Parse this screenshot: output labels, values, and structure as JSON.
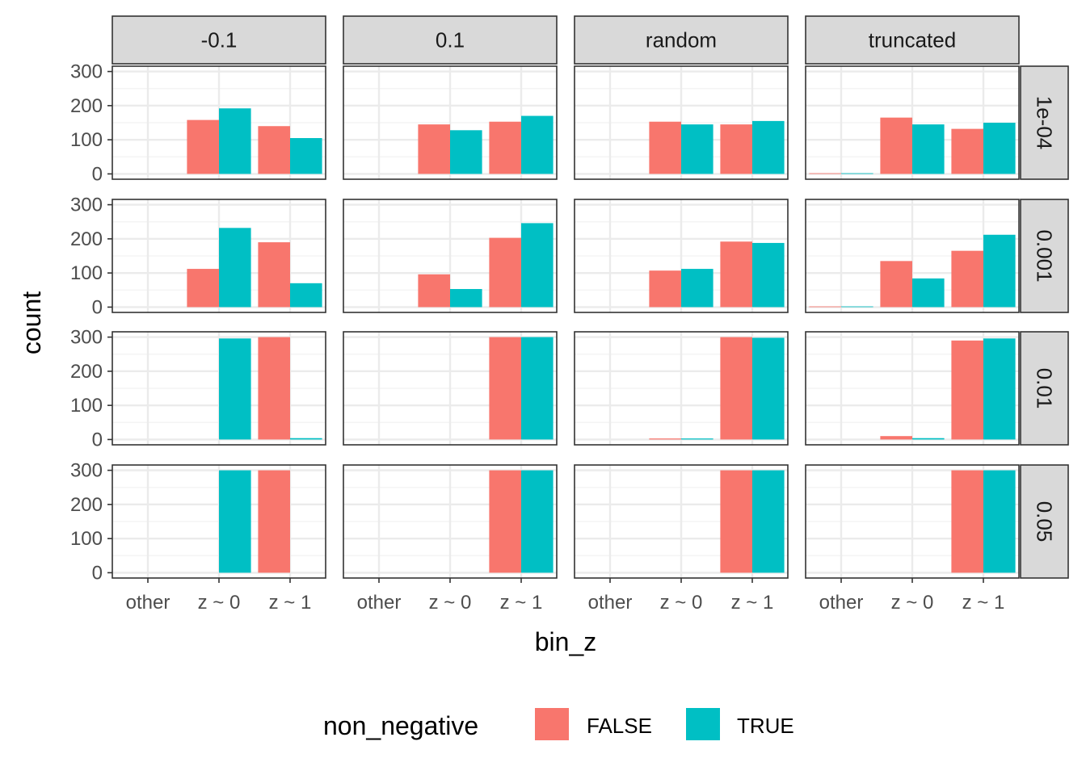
{
  "chart_data": {
    "type": "bar",
    "xlabel": "bin_z",
    "ylabel": "count",
    "ylim": [
      0,
      300
    ],
    "yticks": [
      "0",
      "100",
      "200",
      "300"
    ],
    "categories": [
      "other",
      "z ~ 0",
      "z ~ 1"
    ],
    "columns": [
      "-0.1",
      "0.1",
      "random",
      "truncated"
    ],
    "rows": [
      "1e-04",
      "0.001",
      "0.01",
      "0.05"
    ],
    "legend": {
      "title": "non_negative",
      "position": "bottom",
      "entries": [
        {
          "label": "FALSE",
          "color": "#F8766D"
        },
        {
          "label": "TRUE",
          "color": "#00BFC4"
        }
      ]
    },
    "grid": true,
    "panels": [
      {
        "row": "1e-04",
        "col": "-0.1",
        "FALSE": [
          0,
          158,
          140
        ],
        "TRUE": [
          0,
          192,
          105
        ]
      },
      {
        "row": "1e-04",
        "col": "0.1",
        "FALSE": [
          0,
          145,
          153
        ],
        "TRUE": [
          0,
          128,
          170
        ]
      },
      {
        "row": "1e-04",
        "col": "random",
        "FALSE": [
          0,
          153,
          145
        ],
        "TRUE": [
          0,
          145,
          155
        ]
      },
      {
        "row": "1e-04",
        "col": "truncated",
        "FALSE": [
          2,
          165,
          132
        ],
        "TRUE": [
          2,
          145,
          150
        ]
      },
      {
        "row": "0.001",
        "col": "-0.1",
        "FALSE": [
          0,
          112,
          190
        ],
        "TRUE": [
          0,
          232,
          70
        ]
      },
      {
        "row": "0.001",
        "col": "0.1",
        "FALSE": [
          0,
          96,
          203
        ],
        "TRUE": [
          0,
          53,
          246
        ]
      },
      {
        "row": "0.001",
        "col": "random",
        "FALSE": [
          0,
          107,
          192
        ],
        "TRUE": [
          0,
          112,
          188
        ]
      },
      {
        "row": "0.001",
        "col": "truncated",
        "FALSE": [
          2,
          135,
          165
        ],
        "TRUE": [
          2,
          84,
          212
        ]
      },
      {
        "row": "0.01",
        "col": "-0.1",
        "FALSE": [
          0,
          0,
          300
        ],
        "TRUE": [
          0,
          296,
          4
        ]
      },
      {
        "row": "0.01",
        "col": "0.1",
        "FALSE": [
          0,
          0,
          300
        ],
        "TRUE": [
          0,
          0,
          300
        ]
      },
      {
        "row": "0.01",
        "col": "random",
        "FALSE": [
          0,
          3,
          300
        ],
        "TRUE": [
          0,
          3,
          298
        ]
      },
      {
        "row": "0.01",
        "col": "truncated",
        "FALSE": [
          0,
          10,
          290
        ],
        "TRUE": [
          0,
          4,
          296
        ]
      },
      {
        "row": "0.05",
        "col": "-0.1",
        "FALSE": [
          0,
          0,
          300
        ],
        "TRUE": [
          0,
          300,
          0
        ]
      },
      {
        "row": "0.05",
        "col": "0.1",
        "FALSE": [
          0,
          0,
          300
        ],
        "TRUE": [
          0,
          0,
          300
        ]
      },
      {
        "row": "0.05",
        "col": "random",
        "FALSE": [
          0,
          0,
          300
        ],
        "TRUE": [
          0,
          0,
          300
        ]
      },
      {
        "row": "0.05",
        "col": "truncated",
        "FALSE": [
          0,
          0,
          300
        ],
        "TRUE": [
          0,
          0,
          300
        ]
      }
    ]
  }
}
